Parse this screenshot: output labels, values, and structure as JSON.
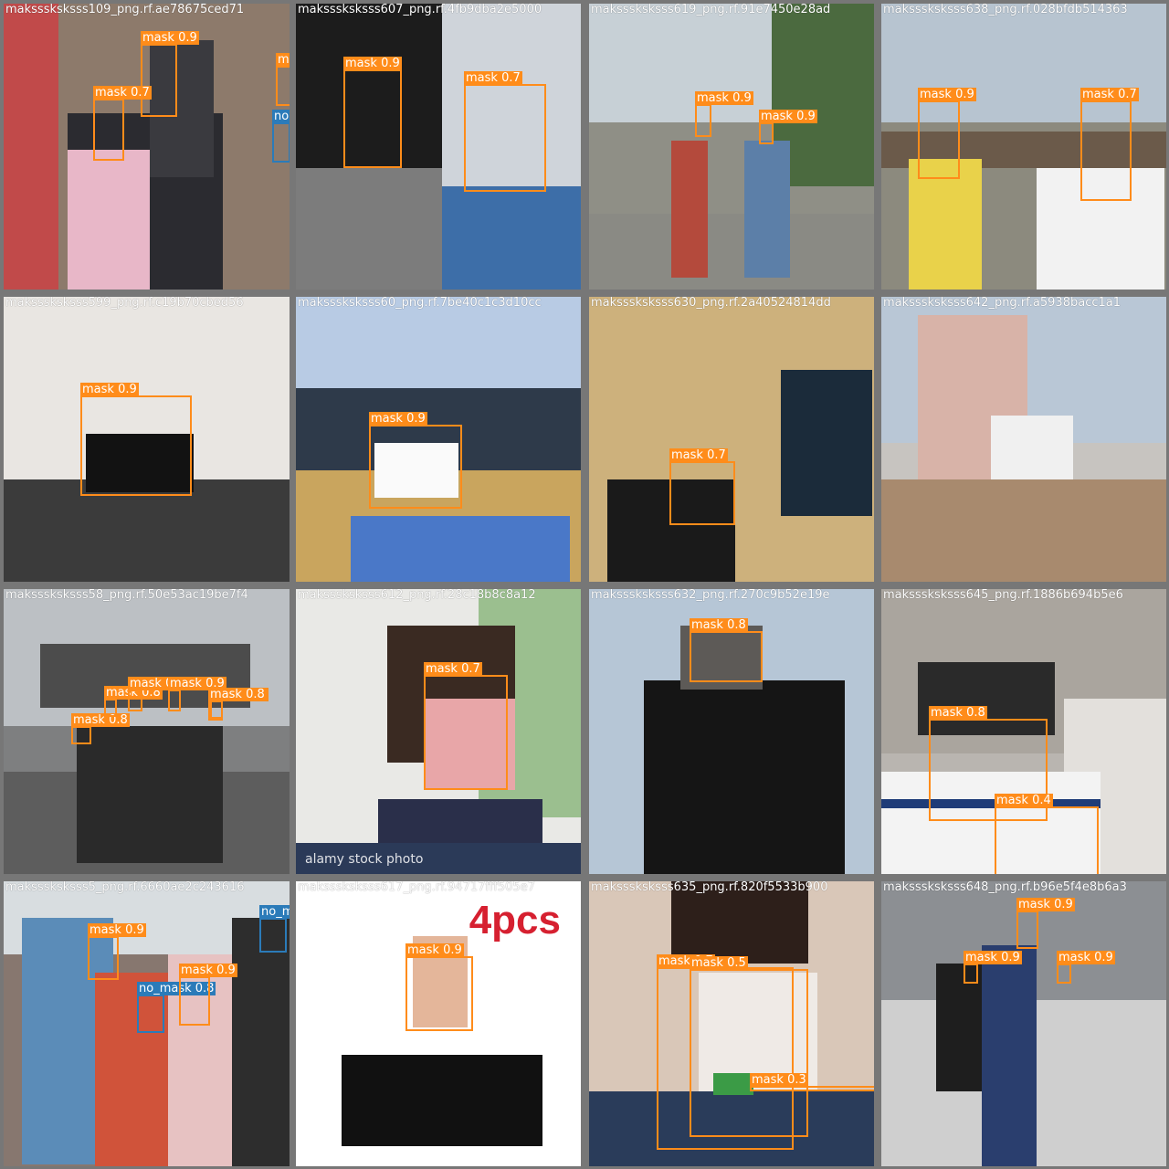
{
  "colors": {
    "mask": "#ff8c1a",
    "no_mask": "#2b7bb9",
    "background": "#777777"
  },
  "tiles": [
    {
      "title": "maksssksksss109_png.rf.ae78675ced71",
      "tone": "#8d7a6b",
      "detections": [
        {
          "label": "mask 0.9",
          "cls": "mask"
        },
        {
          "label": "mask 0.7",
          "cls": "mask"
        },
        {
          "label": "mask",
          "cls": "mask"
        },
        {
          "label": "no",
          "cls": "no_mask"
        }
      ]
    },
    {
      "title": "maksssksksss607_png.rf.4fb9dba2e5000",
      "tone": "#6c6f75",
      "detections": [
        {
          "label": "mask 0.9",
          "cls": "mask"
        },
        {
          "label": "mask 0.7",
          "cls": "mask"
        }
      ]
    },
    {
      "title": "maksssksksss619_png.rf.91e7450e28ad",
      "tone": "#8f8f86",
      "detections": [
        {
          "label": "mask 0.9",
          "cls": "mask"
        },
        {
          "label": "mask 0.9",
          "cls": "mask"
        }
      ]
    },
    {
      "title": "maksssksksss638_png.rf.028bfdb514363",
      "tone": "#8c8a7e",
      "detections": [
        {
          "label": "mask 0.9",
          "cls": "mask"
        },
        {
          "label": "mask 0.7",
          "cls": "mask"
        }
      ]
    },
    {
      "title": "maksssksksss599_png.rf.c19b70cbed56",
      "tone": "#c9c4bb",
      "detections": [
        {
          "label": "mask 0.9",
          "cls": "mask"
        }
      ]
    },
    {
      "title": "maksssksksss60_png.rf.7be40c1c3d10cc",
      "tone": "#6f8fb6",
      "detections": [
        {
          "label": "mask 0.9",
          "cls": "mask"
        }
      ]
    },
    {
      "title": "maksssksksss630_png.rf.2a40524814dd",
      "tone": "#b49b6f",
      "detections": [
        {
          "label": "mask 0.7",
          "cls": "mask"
        }
      ]
    },
    {
      "title": "maksssksksss642_png.rf.a5938bacc1a1",
      "tone": "#c7c4c0",
      "detections": []
    },
    {
      "title": "maksssksksss58_png.rf.50e53ac19be7f4",
      "tone": "#7e7f80",
      "detections": [
        {
          "label": "mask 0.8",
          "cls": "mask"
        },
        {
          "label": "mask 0.8",
          "cls": "mask"
        },
        {
          "label": "mask 0.8",
          "cls": "mask"
        },
        {
          "label": "mask 0.9",
          "cls": "mask"
        },
        {
          "label": "mask 0.8",
          "cls": "mask"
        },
        {
          "label": "mask 0.8",
          "cls": "mask"
        }
      ]
    },
    {
      "title": "maksssksksss612_png.rf.28c18b8c8a12",
      "tone": "#e9e9e6",
      "watermark": "alamy stock photo",
      "detections": [
        {
          "label": "mask 0.7",
          "cls": "mask"
        }
      ]
    },
    {
      "title": "maksssksksss632_png.rf.270c9b52e19e",
      "tone": "#9aa5ad",
      "detections": [
        {
          "label": "mask 0.8",
          "cls": "mask"
        }
      ]
    },
    {
      "title": "maksssksksss645_png.rf.1886b694b5e6",
      "tone": "#b9b5b0",
      "detections": [
        {
          "label": "mask 0.8",
          "cls": "mask"
        },
        {
          "label": "mask 0.4",
          "cls": "mask"
        }
      ]
    },
    {
      "title": "maksssksksss5_png.rf.6660ae2c243616",
      "tone": "#87776f",
      "detections": [
        {
          "label": "mask 0.9",
          "cls": "mask"
        },
        {
          "label": "no_mask 0.8",
          "cls": "no_mask"
        },
        {
          "label": "mask 0.9",
          "cls": "mask"
        },
        {
          "label": "no_m",
          "cls": "no_mask"
        }
      ]
    },
    {
      "title": "maksssksksss617_png.rf.94717fff505e7",
      "tone": "#ffffff",
      "watermark": "4pcs",
      "detections": [
        {
          "label": "mask 0.9",
          "cls": "mask"
        }
      ]
    },
    {
      "title": "maksssksksss635_png.rf.820f5533b900",
      "tone": "#c7a99a",
      "detections": [
        {
          "label": "mask 0.7",
          "cls": "mask"
        },
        {
          "label": "mask 0.5",
          "cls": "mask"
        },
        {
          "label": "mask 0.3",
          "cls": "mask"
        }
      ]
    },
    {
      "title": "maksssksksss648_png.rf.b96e5f4e8b6a3",
      "tone": "#9a9698",
      "detections": [
        {
          "label": "mask 0.9",
          "cls": "mask"
        },
        {
          "label": "mask 0.9",
          "cls": "mask"
        },
        {
          "label": "mask 0.9",
          "cls": "mask"
        }
      ]
    }
  ]
}
